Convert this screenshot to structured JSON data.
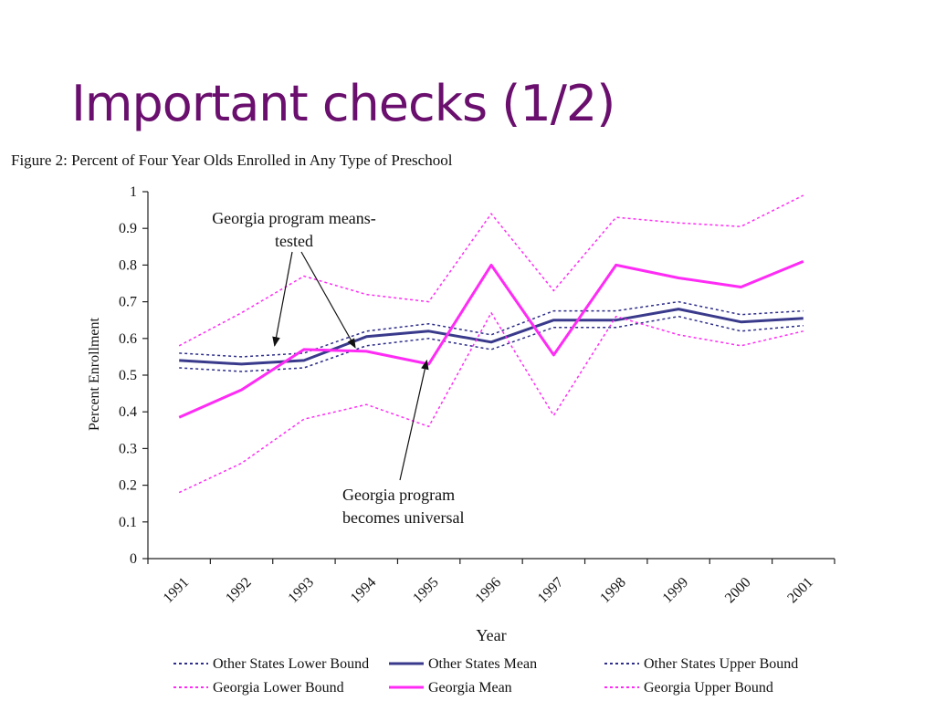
{
  "slide": {
    "title": "Important checks (1/2)"
  },
  "chart_data": {
    "type": "line",
    "title": "Figure 2:  Percent of Four Year Olds Enrolled in Any Type of Preschool",
    "xlabel": "Year",
    "ylabel": "Percent Enrollment",
    "ylim": [
      0,
      1
    ],
    "yticks": [
      0,
      0.1,
      0.2,
      0.3,
      0.4,
      0.5,
      0.6,
      0.7,
      0.8,
      0.9,
      1
    ],
    "ytick_labels": [
      "0",
      "0.1",
      "0.2",
      "0.3",
      "0.4",
      "0.5",
      "0.6",
      "0.7",
      "0.8",
      "0.9",
      "1"
    ],
    "categories": [
      "1991",
      "1992",
      "1993",
      "1994",
      "1995",
      "1996",
      "1997",
      "1998",
      "1999",
      "2000",
      "2001"
    ],
    "grid": false,
    "legend_position": "bottom",
    "series": [
      {
        "name": "Other States Lower Bound",
        "color": "#2e2e8a",
        "style": "dotted",
        "width": 1.5,
        "values": [
          0.52,
          0.51,
          0.52,
          0.58,
          0.6,
          0.57,
          0.63,
          0.63,
          0.66,
          0.62,
          0.635
        ]
      },
      {
        "name": "Other States Mean",
        "color": "#3a3a8c",
        "style": "solid",
        "width": 3,
        "values": [
          0.54,
          0.53,
          0.54,
          0.605,
          0.62,
          0.59,
          0.65,
          0.65,
          0.68,
          0.645,
          0.655
        ]
      },
      {
        "name": "Other States Upper Bound",
        "color": "#2e2e8a",
        "style": "dotted",
        "width": 1.5,
        "values": [
          0.56,
          0.55,
          0.56,
          0.62,
          0.64,
          0.61,
          0.675,
          0.675,
          0.7,
          0.665,
          0.675
        ]
      },
      {
        "name": "Georgia Lower Bound",
        "color": "#ff2bf5",
        "style": "dotted",
        "width": 1.5,
        "values": [
          0.18,
          0.26,
          0.38,
          0.42,
          0.36,
          0.67,
          0.39,
          0.66,
          0.61,
          0.58,
          0.62
        ]
      },
      {
        "name": "Georgia Mean",
        "color": "#ff2bf5",
        "style": "solid",
        "width": 3,
        "values": [
          0.385,
          0.46,
          0.57,
          0.565,
          0.53,
          0.8,
          0.555,
          0.8,
          0.765,
          0.74,
          0.81
        ]
      },
      {
        "name": "Georgia Upper Bound",
        "color": "#ff2bf5",
        "style": "dotted",
        "width": 1.5,
        "values": [
          0.58,
          0.67,
          0.77,
          0.72,
          0.7,
          0.94,
          0.73,
          0.93,
          0.915,
          0.905,
          0.99
        ]
      }
    ],
    "legend_order": [
      0,
      1,
      2,
      3,
      4,
      5
    ],
    "annotations": [
      {
        "lines": [
          "Georgia program means-",
          "tested"
        ],
        "arrow_to": [
          [
            1993,
            0.57
          ],
          [
            1994,
            0.565
          ]
        ]
      },
      {
        "lines": [
          "Georgia program",
          "becomes universal"
        ],
        "arrow_to": [
          [
            1995,
            0.53
          ]
        ]
      }
    ]
  }
}
